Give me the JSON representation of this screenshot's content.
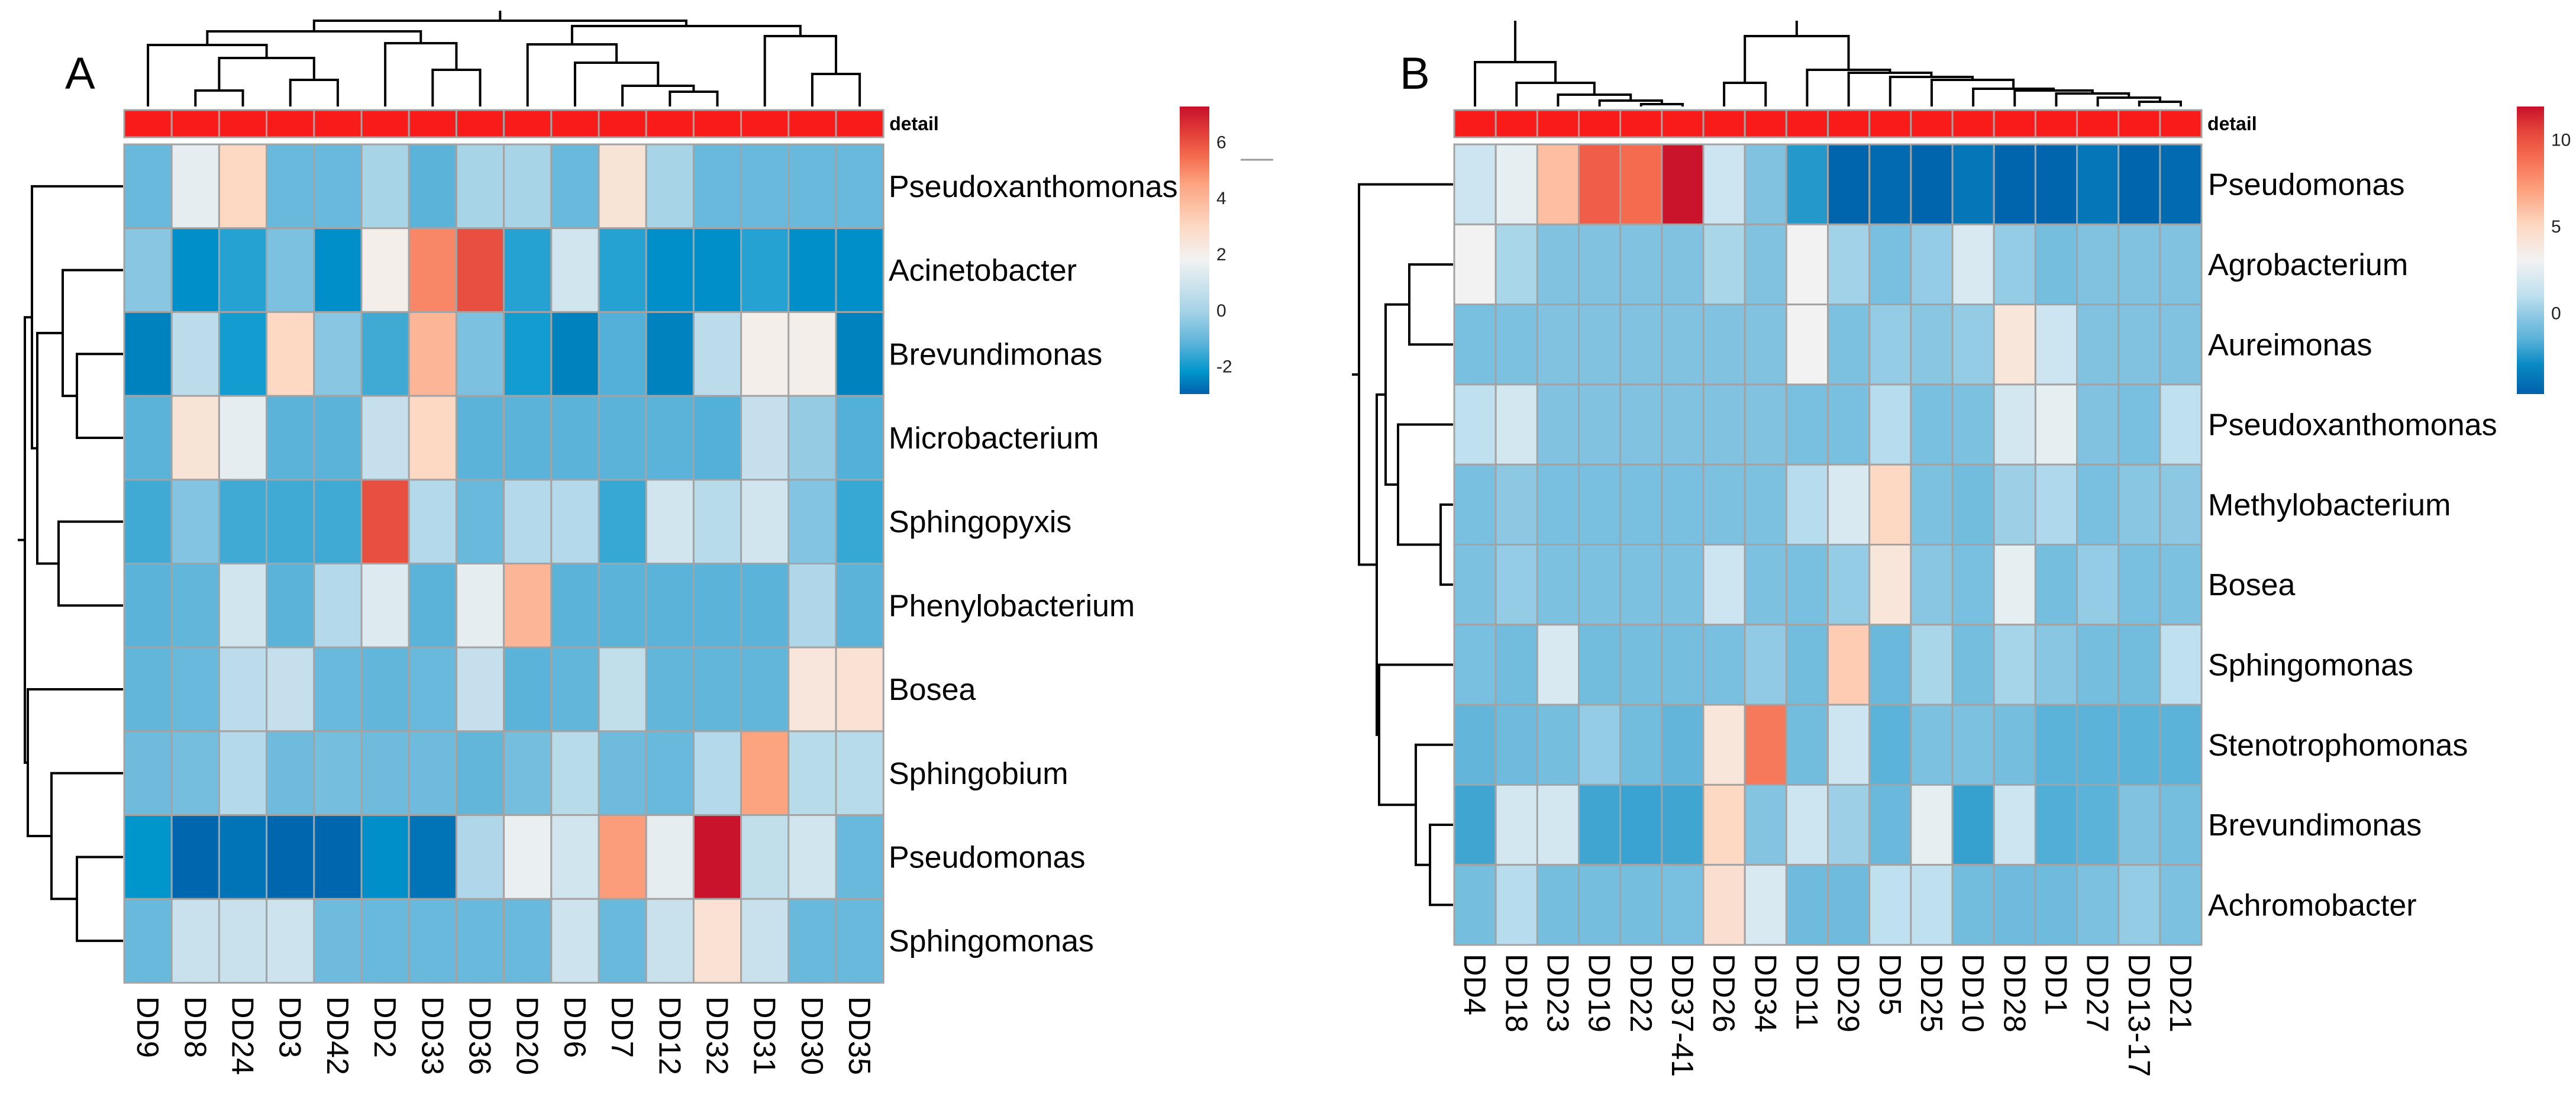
{
  "chart_data": [
    {
      "type": "heatmap",
      "panel": "A",
      "annotation": {
        "label": "detail",
        "color": "#f91a1a"
      },
      "columns": [
        "DD9",
        "DD8",
        "DD24",
        "DD3",
        "DD42",
        "DD2",
        "DD33",
        "DD36",
        "DD20",
        "DD6",
        "DD7",
        "DD12",
        "DD32",
        "DD31",
        "DD30",
        "DD35"
      ],
      "rows": [
        "Pseudoxanthomonas",
        "Acinetobacter",
        "Brevundimonas",
        "Microbacterium",
        "Sphingopyxis",
        "Phenylobacterium",
        "Bosea",
        "Sphingobium",
        "Pseudomonas",
        "Sphingomonas"
      ],
      "values": [
        [
          -1,
          1.5,
          3,
          -1,
          -1,
          0,
          -1.2,
          0,
          0,
          -1,
          2.5,
          0,
          -1,
          -1,
          -1,
          -1
        ],
        [
          -0.5,
          -2.3,
          -1.8,
          -0.7,
          -2.3,
          2,
          5,
          6,
          -1.8,
          1,
          -1.8,
          -2.3,
          -2.3,
          -1.8,
          -2.3,
          -2.3
        ],
        [
          -2.5,
          0.5,
          -2,
          3,
          -0.5,
          -1.5,
          4,
          -0.7,
          -2,
          -2.5,
          -1.3,
          -2.5,
          0.5,
          2,
          2,
          -2.5
        ],
        [
          -1.2,
          2.5,
          1.5,
          -1.2,
          -1.2,
          0.7,
          3,
          -1.2,
          -1.2,
          -1.2,
          -1.2,
          -1.2,
          -1.3,
          0.7,
          -0.3,
          -1.3
        ],
        [
          -1.5,
          -0.6,
          -1.5,
          -1.5,
          -1.5,
          6,
          0.3,
          -1,
          0.3,
          0.3,
          -1.6,
          1,
          0.4,
          1,
          -0.6,
          -1.6
        ],
        [
          -1.2,
          -1.1,
          1,
          -1.2,
          0.3,
          1.3,
          -1.2,
          1.5,
          4,
          -1.2,
          -1.2,
          -1.2,
          -1.2,
          -1.2,
          0.2,
          -1.2
        ],
        [
          -1.1,
          -1,
          0.5,
          0.7,
          -1,
          -1.1,
          -1,
          0.7,
          -1.2,
          -1.1,
          0.6,
          -1.1,
          -1.1,
          -1.1,
          2.4,
          2.6
        ],
        [
          -0.9,
          -0.8,
          0.3,
          -0.9,
          -0.8,
          -0.9,
          -0.9,
          -1.1,
          -0.8,
          0.4,
          -0.9,
          -1,
          0.3,
          4.5,
          0.4,
          0.4
        ],
        [
          -2.2,
          -2.9,
          -2.7,
          -2.9,
          -2.9,
          -2.3,
          -2.7,
          0.2,
          1.6,
          1,
          4.6,
          1.5,
          7.2,
          0.6,
          1,
          -1
        ],
        [
          -1,
          0.8,
          0.8,
          0.9,
          -0.9,
          -1,
          -1,
          -1,
          -1,
          0.9,
          -1,
          0.8,
          2.6,
          0.8,
          -1,
          -1
        ]
      ],
      "color_scale": {
        "min": -3,
        "max": 7.25,
        "ticks": [
          "6",
          "4",
          "2",
          "0",
          "-2"
        ],
        "tick_values": [
          6,
          4,
          2,
          0,
          -2
        ],
        "stops": [
          [
            -3,
            "#0060aa"
          ],
          [
            -2.2,
            "#0096cc"
          ],
          [
            -1.2,
            "#5cb3d9"
          ],
          [
            0,
            "#a8d4e8"
          ],
          [
            1.8,
            "#f2f2f2"
          ],
          [
            3,
            "#fdd8c3"
          ],
          [
            4.5,
            "#fca380"
          ],
          [
            5.5,
            "#f46a4e"
          ],
          [
            6.2,
            "#e5443b"
          ],
          [
            7.25,
            "#c8102a"
          ]
        ]
      }
    },
    {
      "type": "heatmap",
      "panel": "B",
      "annotation": {
        "label": "detail",
        "color": "#f91a1a"
      },
      "columns": [
        "DD4",
        "DD18",
        "DD23",
        "DD19",
        "DD22",
        "DD37-41",
        "DD26",
        "DD34",
        "DD11",
        "DD29",
        "DD5",
        "DD25",
        "DD10",
        "DD28",
        "DD1",
        "DD27",
        "DD13-17",
        "DD21"
      ],
      "rows": [
        "Pseudomonas",
        "Agrobacterium",
        "Aureimonas",
        "Pseudoxanthomonas",
        "Methylobacterium",
        "Bosea",
        "Sphingomonas",
        "Stenotrophomonas",
        "Brevundimonas",
        "Achromobacter"
      ],
      "values": [
        [
          1.5,
          2.5,
          6,
          9.5,
          9,
          11.8,
          1.5,
          -0.5,
          -2.5,
          -4.5,
          -4.3,
          -4.5,
          -3.8,
          -4.5,
          -4.5,
          -3.8,
          -4.5,
          -4.3
        ],
        [
          3,
          0.5,
          -0.5,
          -0.5,
          -0.5,
          -0.5,
          0.5,
          -0.5,
          3,
          0.3,
          -0.7,
          0,
          2,
          0,
          -0.8,
          -0.5,
          -0.5,
          -0.5
        ],
        [
          -0.7,
          -0.6,
          -0.5,
          -0.5,
          -0.5,
          -0.5,
          -0.5,
          -0.5,
          3,
          -0.6,
          0,
          -0.3,
          0,
          4,
          1.5,
          -0.5,
          -0.5,
          -0.5
        ],
        [
          1,
          1.8,
          -0.5,
          -0.5,
          -0.5,
          -0.5,
          -0.5,
          -0.5,
          -0.7,
          -0.7,
          0.8,
          -0.7,
          -0.6,
          1.8,
          2.5,
          -0.5,
          -0.7,
          1
        ],
        [
          -0.7,
          -0.2,
          -0.7,
          -0.7,
          -0.7,
          -0.7,
          -0.6,
          -0.6,
          0.8,
          2,
          5,
          -0.6,
          -0.9,
          0.2,
          0.6,
          -0.7,
          -0.3,
          -0.2
        ],
        [
          -0.6,
          0,
          -0.6,
          -0.6,
          -0.6,
          -0.6,
          1.5,
          -0.6,
          -0.7,
          0,
          4,
          -0.3,
          -0.7,
          2.5,
          -0.8,
          0,
          -0.7,
          -0.6
        ],
        [
          -0.7,
          -0.9,
          2,
          -0.9,
          -0.8,
          -0.8,
          -0.7,
          -0.1,
          -0.9,
          5.5,
          -1.1,
          0.5,
          -0.8,
          0.4,
          -0.3,
          -0.8,
          -0.9,
          1
        ],
        [
          -1.3,
          -1,
          -0.8,
          0,
          -0.9,
          -1.3,
          4,
          8.5,
          -0.9,
          1.5,
          -1.5,
          -0.6,
          -0.6,
          -0.8,
          -1.5,
          -1.5,
          -1.5,
          -1.5
        ],
        [
          -2,
          1.8,
          1.8,
          -2,
          -2.1,
          -2,
          5,
          -0.4,
          1.5,
          0.2,
          -1.1,
          2.5,
          -2.2,
          1.5,
          -1.7,
          -1.5,
          -0.5,
          -0.8
        ],
        [
          -0.8,
          0.8,
          -0.8,
          -0.8,
          -0.8,
          -0.7,
          4.5,
          2,
          -1,
          -1,
          1,
          1,
          -0.9,
          -1,
          -1,
          -0.6,
          0,
          -0.6
        ]
      ],
      "color_scale": {
        "min": -4.7,
        "max": 11.9,
        "ticks": [
          "10",
          "5",
          "0"
        ],
        "tick_values": [
          10,
          5,
          0
        ],
        "stops": [
          [
            -4.7,
            "#0060aa"
          ],
          [
            -3,
            "#0a8ac4"
          ],
          [
            -1.5,
            "#5cb3d9"
          ],
          [
            -0.5,
            "#80c2e0"
          ],
          [
            1,
            "#bfe0ef"
          ],
          [
            3,
            "#f2f2f2"
          ],
          [
            5,
            "#fdd9c4"
          ],
          [
            7,
            "#fca380"
          ],
          [
            9,
            "#f56b50"
          ],
          [
            10.5,
            "#e5443b"
          ],
          [
            11.9,
            "#c8102a"
          ]
        ]
      }
    }
  ]
}
